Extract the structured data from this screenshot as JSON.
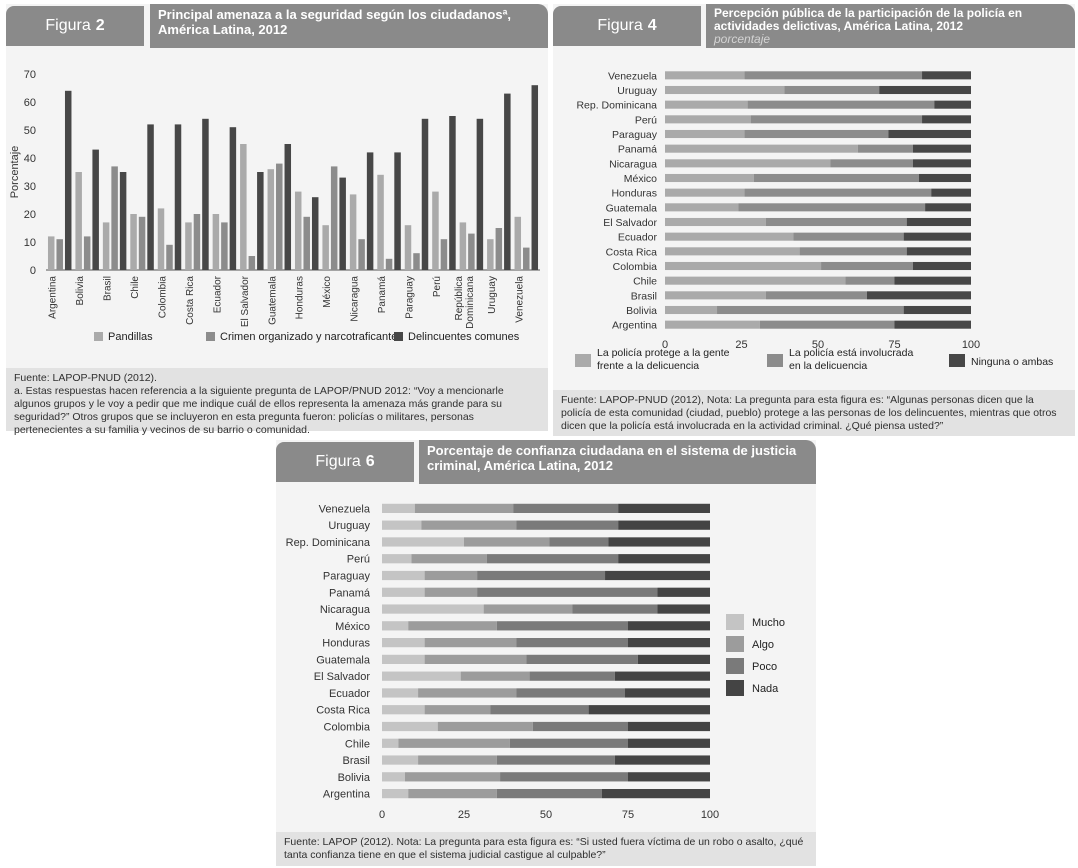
{
  "colors": {
    "header": "#8a8a8a",
    "light": "#aaaaaa",
    "mid": "#8c8c8c",
    "dark": "#474747",
    "mucho": "#c4c4c4",
    "algo": "#9c9c9c",
    "poco": "#7a7a7a",
    "nada": "#444444"
  },
  "fig2": {
    "fig_word": "Figura",
    "fig_num": "2",
    "title": "Principal amenaza a la seguridad según los ciudadanosª, América Latina, 2012",
    "source": "Fuente: LAPOP-PNUD (2012).",
    "note": "a. Estas respuestas hacen referencia a la siguiente pregunta de LAPOP/PNUD 2012: “Voy a mencionarle algunos grupos y le voy a pedir que me indique cuál de ellos representa la amenaza más grande para su seguridad?” Otros grupos que se incluyeron en esta pregunta fueron: policías o militares, personas pertenecientes a su familia y vecinos de su barrio o comunidad."
  },
  "fig4": {
    "fig_word": "Figura",
    "fig_num": "4",
    "title": "Percepción pública de la participación de la policía en actividades delictivas, América Latina, 2012",
    "subtitle": "porcentaje",
    "source": "Fuente: LAPOP-PNUD (2012), Nota: La pregunta para esta figura es: “Algunas personas dicen que la policía de esta comunidad (ciudad, pueblo) protege a las personas de los delincuentes, mientras que otros dicen que la policía está involucrada en la actividad criminal. ¿Qué piensa usted?”"
  },
  "fig6": {
    "fig_word": "Figura",
    "fig_num": "6",
    "title": "Porcentaje de confianza ciudadana en el sistema de justicia criminal, América Latina, 2012",
    "source": "Fuente: LAPOP (2012). Nota: La pregunta para esta figura es: “Si usted fuera víctima de un robo o asalto, ¿qué tanta confianza tiene en que el sistema judicial castigue al culpable?”"
  },
  "chart_data": [
    {
      "id": "fig2",
      "type": "bar",
      "title": "Principal amenaza a la seguridad según los ciudadanosª, América Latina, 2012",
      "ylabel": "Porcentaje",
      "ylim": [
        0,
        70
      ],
      "yticks": [
        0,
        10,
        20,
        30,
        40,
        50,
        60,
        70
      ],
      "categories": [
        "Argentina",
        "Bolivia",
        "Brasil",
        "Chile",
        "Colombia",
        "Costa Rica",
        "Ecuador",
        "El Salvador",
        "Guatemala",
        "Honduras",
        "México",
        "Nicaragua",
        "Panamá",
        "Paraguay",
        "Perú",
        "República Dominicana",
        "Uruguay",
        "Venezuela"
      ],
      "category_labels": [
        "Argentina",
        "Bolivia",
        "Brasil",
        "Chile",
        "Colombia",
        "Costa Rica",
        "Ecuador",
        "El Salvador",
        "Guatemala",
        "Honduras",
        "México",
        "Nicaragua",
        "Panamá",
        "Paraguay",
        "Perú",
        "República\nDominicana",
        "Uruguay",
        "Venezuela"
      ],
      "series": [
        {
          "name": "Pandillas",
          "values": [
            12,
            35,
            17,
            20,
            22,
            17,
            20,
            45,
            36,
            28,
            16,
            27,
            34,
            16,
            28,
            17,
            11,
            19
          ]
        },
        {
          "name": "Crimen organizado y narcotraficantes",
          "values": [
            11,
            12,
            37,
            19,
            9,
            20,
            17,
            5,
            38,
            19,
            37,
            11,
            4,
            6,
            11,
            13,
            15,
            8
          ]
        },
        {
          "name": "Delincuentes comunes",
          "values": [
            64,
            43,
            35,
            52,
            52,
            54,
            51,
            35,
            45,
            26,
            33,
            42,
            42,
            54,
            55,
            54,
            63,
            66
          ]
        }
      ],
      "legend": "bottom"
    },
    {
      "id": "fig4",
      "type": "bar",
      "orientation": "horizontal",
      "stacked": true,
      "title": "Percepción pública de la participación de la policía en actividades delictivas, América Latina, 2012",
      "subtitle": "porcentaje",
      "xlim": [
        0,
        100
      ],
      "xticks": [
        0,
        25,
        50,
        75,
        100
      ],
      "categories": [
        "Venezuela",
        "Uruguay",
        "Rep. Dominicana",
        "Perú",
        "Paraguay",
        "Panamá",
        "Nicaragua",
        "México",
        "Honduras",
        "Guatemala",
        "El Salvador",
        "Ecuador",
        "Costa Rica",
        "Colombia",
        "Chile",
        "Brasil",
        "Bolivia",
        "Argentina"
      ],
      "series": [
        {
          "name": "La policía protege a la gente frente a la delicuencia",
          "values": [
            26,
            39,
            27,
            28,
            26,
            63,
            54,
            29,
            26,
            24,
            33,
            42,
            44,
            51,
            59,
            33,
            17,
            31
          ]
        },
        {
          "name": "La policía está involucrada en la delicuencia",
          "values": [
            58,
            31,
            61,
            56,
            47,
            18,
            27,
            54,
            61,
            61,
            46,
            36,
            35,
            30,
            16,
            33,
            61,
            44
          ]
        },
        {
          "name": "Ninguna o ambas",
          "values": [
            16,
            30,
            12,
            16,
            27,
            19,
            19,
            17,
            13,
            15,
            21,
            22,
            21,
            19,
            25,
            34,
            22,
            25
          ]
        }
      ],
      "legend": "bottom"
    },
    {
      "id": "fig6",
      "type": "bar",
      "orientation": "horizontal",
      "stacked": true,
      "title": "Porcentaje de confianza ciudadana en el sistema de justicia criminal, América Latina, 2012",
      "xlim": [
        0,
        100
      ],
      "xticks": [
        0,
        25,
        50,
        75,
        100
      ],
      "categories": [
        "Venezuela",
        "Uruguay",
        "Rep. Dominicana",
        "Perú",
        "Paraguay",
        "Panamá",
        "Nicaragua",
        "México",
        "Honduras",
        "Guatemala",
        "El Salvador",
        "Ecuador",
        "Costa Rica",
        "Colombia",
        "Chile",
        "Brasil",
        "Bolivia",
        "Argentina"
      ],
      "series": [
        {
          "name": "Mucho",
          "values": [
            10,
            12,
            25,
            9,
            13,
            13,
            31,
            8,
            13,
            13,
            24,
            11,
            13,
            17,
            5,
            11,
            7,
            8
          ]
        },
        {
          "name": "Algo",
          "values": [
            30,
            29,
            26,
            23,
            16,
            16,
            27,
            27,
            28,
            31,
            21,
            30,
            20,
            29,
            34,
            24,
            29,
            27
          ]
        },
        {
          "name": "Poco",
          "values": [
            32,
            31,
            18,
            40,
            39,
            55,
            26,
            40,
            34,
            34,
            26,
            33,
            30,
            29,
            36,
            36,
            39,
            32
          ]
        },
        {
          "name": "Nada",
          "values": [
            28,
            28,
            31,
            28,
            32,
            16,
            16,
            25,
            25,
            22,
            29,
            26,
            37,
            25,
            25,
            29,
            25,
            33
          ]
        }
      ],
      "legend": "right"
    }
  ]
}
